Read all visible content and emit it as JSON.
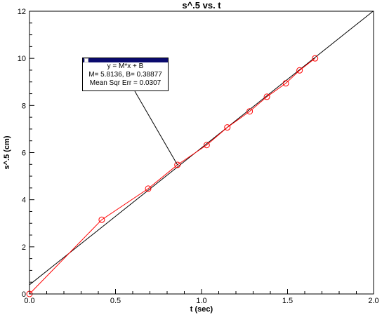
{
  "chart_data": {
    "type": "scatter",
    "title": "s^.5 vs. t",
    "xlabel": "t (sec)",
    "ylabel": "s^.5 (cm)",
    "xlim": [
      0,
      2
    ],
    "ylim": [
      0,
      12
    ],
    "x_ticks": [
      "0.0",
      "0.5",
      "1.0",
      "1.5",
      "2.0"
    ],
    "y_ticks": [
      "0",
      "2",
      "4",
      "6",
      "8",
      "10",
      "12"
    ],
    "grid": false,
    "series": [
      {
        "color": "#ff0000",
        "marker": "circle",
        "x": [
          0.0,
          0.42,
          0.69,
          0.86,
          1.03,
          1.15,
          1.28,
          1.38,
          1.49,
          1.57,
          1.66
        ],
        "y": [
          0.0,
          3.15,
          4.47,
          5.48,
          6.32,
          7.07,
          7.75,
          8.37,
          8.94,
          9.49,
          10.0
        ]
      }
    ],
    "fit": {
      "color": "#000000",
      "slope": 5.8136,
      "intercept": 0.38877
    },
    "annotation": {
      "line1": "y = M*x + B",
      "line2": "M= 5.8136,  B= 0.38877",
      "line3": "Mean Sqr Err = 0.0307",
      "pointer_target": [
        0.86,
        5.48
      ]
    }
  }
}
